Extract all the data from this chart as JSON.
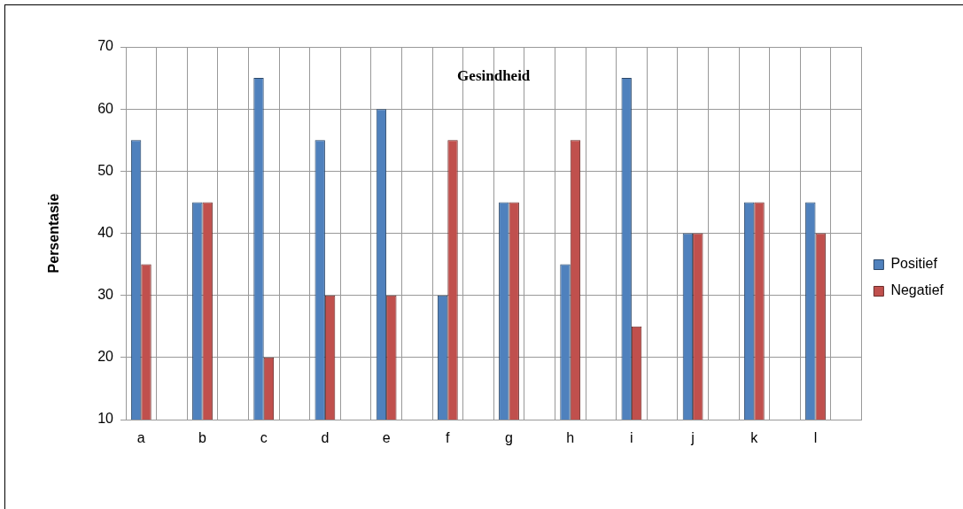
{
  "chart_data": {
    "type": "bar",
    "title": "Gesindheid",
    "ylabel": "Persentasie",
    "categories": [
      "a",
      null,
      "b",
      null,
      "c",
      null,
      "d",
      null,
      "e",
      null,
      "f",
      null,
      "g",
      null,
      "h",
      null,
      "i",
      null,
      "j",
      null,
      "k",
      null,
      "l",
      null
    ],
    "series": [
      {
        "name": "Positief",
        "color": "#4f81bd",
        "values": [
          55,
          null,
          45,
          null,
          65,
          null,
          55,
          null,
          60,
          null,
          30,
          null,
          45,
          null,
          35,
          null,
          65,
          null,
          40,
          null,
          45,
          null,
          45,
          null
        ]
      },
      {
        "name": "Negatief",
        "color": "#c0504d",
        "values": [
          35,
          null,
          45,
          null,
          20,
          null,
          30,
          null,
          30,
          null,
          55,
          null,
          45,
          null,
          55,
          null,
          25,
          null,
          40,
          null,
          45,
          null,
          40,
          null
        ]
      }
    ],
    "ylim": [
      10,
      70
    ],
    "yticks": [
      10,
      20,
      30,
      40,
      50,
      60,
      70
    ],
    "grid": true,
    "legend": "right"
  }
}
